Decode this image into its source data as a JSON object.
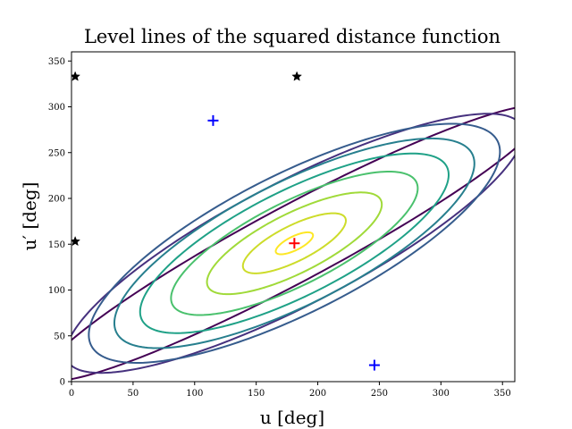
{
  "chart_data": {
    "type": "contour",
    "title": "Level lines of the squared distance function",
    "xlabel": "u [deg]",
    "ylabel": "u′ [deg]",
    "xlim": [
      0,
      360
    ],
    "ylim": [
      0,
      360
    ],
    "xticks": [
      0,
      50,
      100,
      150,
      200,
      250,
      300,
      350
    ],
    "yticks": [
      0,
      50,
      100,
      150,
      200,
      250,
      300,
      350
    ],
    "grid": false,
    "colormap": "viridis",
    "minimum": {
      "u": 181,
      "u_prime": 151
    },
    "contours": [
      {
        "level_index": 1,
        "color": "#440154",
        "center": [
          181,
          151
        ],
        "a": 250,
        "b": 38,
        "angle_deg": 36
      },
      {
        "level_index": 2,
        "color": "#46317e",
        "center": [
          181,
          151
        ],
        "a": 225,
        "b": 62,
        "angle_deg": 36
      },
      {
        "level_index": 3,
        "color": "#365c8d",
        "center": [
          181,
          151
        ],
        "a": 200,
        "b": 70,
        "angle_deg": 36
      },
      {
        "level_index": 4,
        "color": "#277f8e",
        "center": [
          181,
          151
        ],
        "a": 175,
        "b": 62,
        "angle_deg": 36
      },
      {
        "level_index": 5,
        "color": "#1fa187",
        "center": [
          181,
          151
        ],
        "a": 150,
        "b": 53,
        "angle_deg": 36
      },
      {
        "level_index": 6,
        "color": "#4ac16d",
        "center": [
          181,
          151
        ],
        "a": 120,
        "b": 42,
        "angle_deg": 36
      },
      {
        "level_index": 7,
        "color": "#a0da39",
        "center": [
          181,
          151
        ],
        "a": 85,
        "b": 30,
        "angle_deg": 36
      },
      {
        "level_index": 8,
        "color": "#cddc2a",
        "center": [
          181,
          151
        ],
        "a": 50,
        "b": 18,
        "angle_deg": 36
      },
      {
        "level_index": 9,
        "color": "#fde725",
        "center": [
          181,
          151
        ],
        "a": 18,
        "b": 7,
        "angle_deg": 36
      }
    ],
    "markers": [
      {
        "name": "red-plus",
        "shape": "plus",
        "color": "#ff0000",
        "x": 181,
        "y": 151
      },
      {
        "name": "blue-plus-1",
        "shape": "plus",
        "color": "#0000ff",
        "x": 115,
        "y": 285
      },
      {
        "name": "blue-plus-2",
        "shape": "plus",
        "color": "#0000ff",
        "x": 246,
        "y": 18
      },
      {
        "name": "star-1",
        "shape": "star",
        "color": "#000000",
        "x": 3,
        "y": 333
      },
      {
        "name": "star-2",
        "shape": "star",
        "color": "#000000",
        "x": 3,
        "y": 153
      },
      {
        "name": "star-3",
        "shape": "star",
        "color": "#000000",
        "x": 183,
        "y": 333
      }
    ]
  }
}
